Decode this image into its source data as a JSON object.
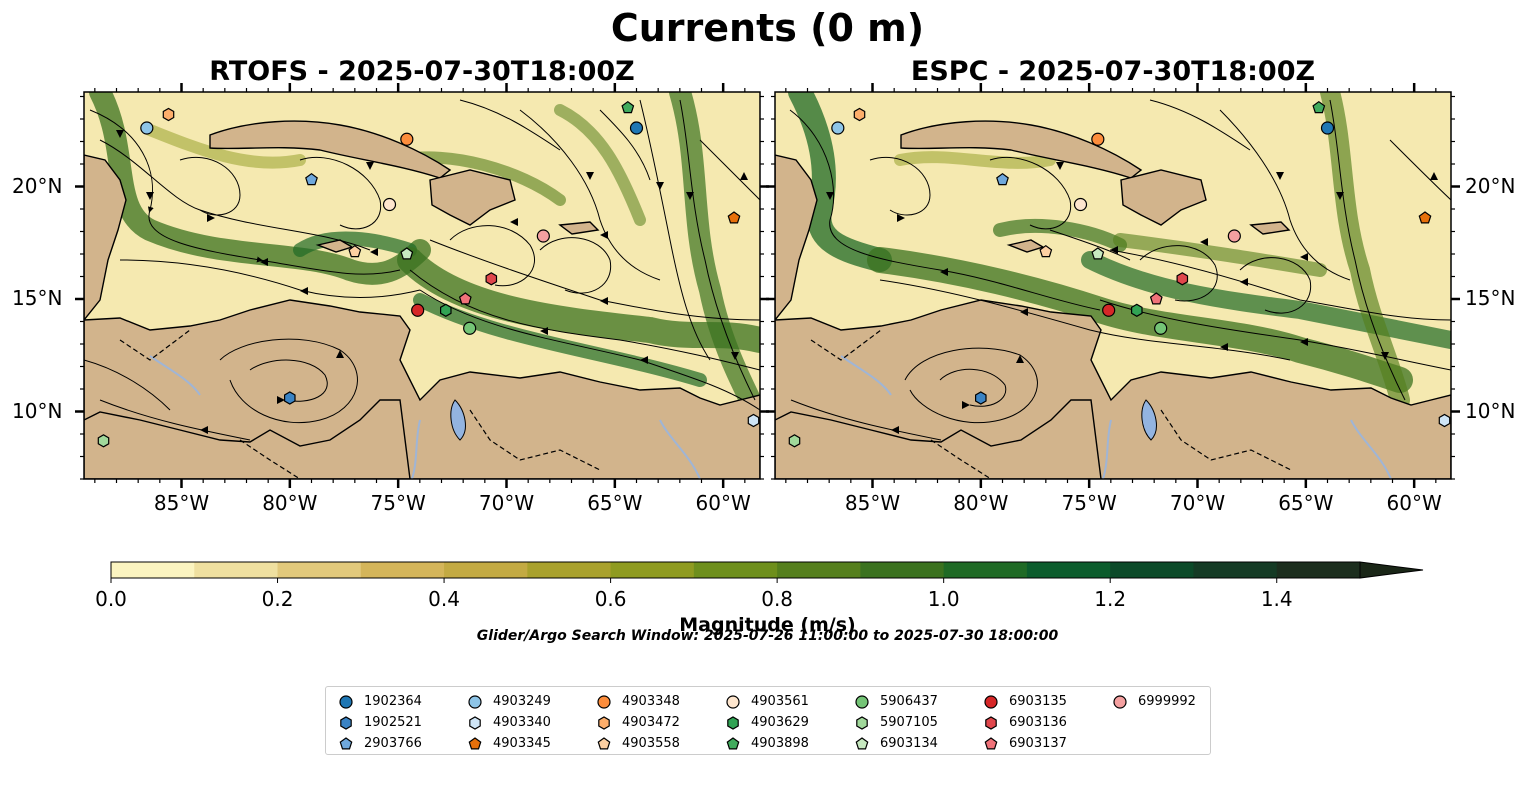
{
  "title": "Currents (0 m)",
  "panels": [
    {
      "name": "rtofs",
      "title": "RTOFS - 2025-07-30T18:00Z"
    },
    {
      "name": "espc",
      "title": "ESPC - 2025-07-30T18:00Z"
    }
  ],
  "axes": {
    "lon_ticks": [
      "85°W",
      "80°W",
      "75°W",
      "70°W",
      "65°W",
      "60°W"
    ],
    "lon_values": [
      -85,
      -80,
      -75,
      -70,
      -65,
      -60
    ],
    "lat_ticks": [
      "20°N",
      "15°N",
      "10°N"
    ],
    "lat_values": [
      20,
      15,
      10
    ],
    "lon_range": [
      -89.5,
      -58.3
    ],
    "lat_range": [
      7.0,
      24.2
    ]
  },
  "colorbar": {
    "label": "Magnitude (m/s)",
    "ticks": [
      "0.0",
      "0.2",
      "0.4",
      "0.6",
      "0.8",
      "1.0",
      "1.2",
      "1.4"
    ],
    "tick_values": [
      0,
      0.2,
      0.4,
      0.6,
      0.8,
      1.0,
      1.2,
      1.4
    ],
    "max": 1.5,
    "colors": [
      "#fbf4c0",
      "#efe0a0",
      "#e2c97c",
      "#d4b55a",
      "#c3aa43",
      "#a9a12d",
      "#8f9b20",
      "#6e8f1c",
      "#557f1d",
      "#3b721f",
      "#1f6a25",
      "#0b5c2c",
      "#0c4a29",
      "#153b25",
      "#1c2e1e"
    ]
  },
  "window_note": "Glider/Argo Search Window: 2025-07-26 11:00:00 to 2025-07-30 18:00:00",
  "colors": {
    "land": "#d2b48c",
    "lake": "#93b4e0",
    "river": "#9fb5d6",
    "ocean_base": "#f5e9b0"
  },
  "floats": [
    {
      "id": "1902364",
      "marker": "circle",
      "color": "#1f77b4",
      "lon": -64.0,
      "lat": 22.6
    },
    {
      "id": "1902521",
      "marker": "hexagon",
      "color": "#3a83c4",
      "lon": -80.0,
      "lat": 10.6
    },
    {
      "id": "2903766",
      "marker": "pentagon",
      "color": "#6fa8dc",
      "lon": -79.0,
      "lat": 20.3
    },
    {
      "id": "4903249",
      "marker": "circle",
      "color": "#8ec5e8",
      "lon": -86.6,
      "lat": 22.6
    },
    {
      "id": "4903340",
      "marker": "hexagon",
      "color": "#cfe5f6",
      "lon": -58.6,
      "lat": 9.6
    },
    {
      "id": "4903345",
      "marker": "pentagon",
      "color": "#e8700a",
      "lon": -59.5,
      "lat": 18.6
    },
    {
      "id": "4903348",
      "marker": "circle",
      "color": "#fd8d3c",
      "lon": -74.6,
      "lat": 22.1
    },
    {
      "id": "4903472",
      "marker": "hexagon",
      "color": "#fdae6b",
      "lon": -85.6,
      "lat": 23.2
    },
    {
      "id": "4903558",
      "marker": "pentagon",
      "color": "#fdd0a2",
      "lon": -77.0,
      "lat": 17.1
    },
    {
      "id": "4903561",
      "marker": "circle",
      "color": "#fee6ce",
      "lon": -75.4,
      "lat": 19.2
    },
    {
      "id": "4903629",
      "marker": "hexagon",
      "color": "#31a354",
      "lon": -72.8,
      "lat": 14.5
    },
    {
      "id": "4903898",
      "marker": "pentagon",
      "color": "#41ab5d",
      "lon": -64.4,
      "lat": 23.5
    },
    {
      "id": "5906437",
      "marker": "circle",
      "color": "#74c476",
      "lon": -71.7,
      "lat": 13.7
    },
    {
      "id": "5907105",
      "marker": "hexagon",
      "color": "#a1d99b",
      "lon": -88.6,
      "lat": 8.7
    },
    {
      "id": "6903134",
      "marker": "pentagon",
      "color": "#c7e9c0",
      "lon": -74.6,
      "lat": 17.0
    },
    {
      "id": "6903135",
      "marker": "circle",
      "color": "#d62728",
      "lon": -74.1,
      "lat": 14.5
    },
    {
      "id": "6903136",
      "marker": "hexagon",
      "color": "#e0474c",
      "lon": -70.7,
      "lat": 15.9
    },
    {
      "id": "6903137",
      "marker": "pentagon",
      "color": "#f07279",
      "lon": -71.9,
      "lat": 15.0
    },
    {
      "id": "6999992",
      "marker": "circle",
      "color": "#f4a0a0",
      "lon": -68.3,
      "lat": 17.8
    }
  ]
}
